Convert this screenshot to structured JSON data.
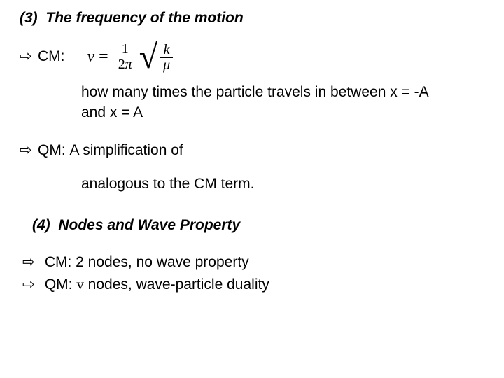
{
  "colors": {
    "background": "#ffffff",
    "text": "#000000"
  },
  "heading3": {
    "number": "(3)",
    "title": "The frequency of the motion"
  },
  "cm": {
    "arrow": "⇨",
    "label": "CM:",
    "formula": {
      "nu": "ν",
      "equals": "=",
      "frac_num": "1",
      "frac_den_2": "2",
      "frac_den_pi": "π",
      "root_num": "k",
      "root_den": "μ"
    },
    "desc1": "how many times the particle travels in between x = -A",
    "desc2": "and x = A"
  },
  "qm": {
    "arrow": "⇨",
    "label": "QM:",
    "text": "A simplification of",
    "desc": "analogous to the CM term."
  },
  "heading4": {
    "number": "(4)",
    "title": "Nodes and Wave Property"
  },
  "final": {
    "line1_arrow": "⇨",
    "line1_text": "CM: 2 nodes, no wave property",
    "line2_arrow": "⇨",
    "line2_pre": "QM: ",
    "line2_v": "v",
    "line2_post": " nodes, wave-particle duality"
  }
}
